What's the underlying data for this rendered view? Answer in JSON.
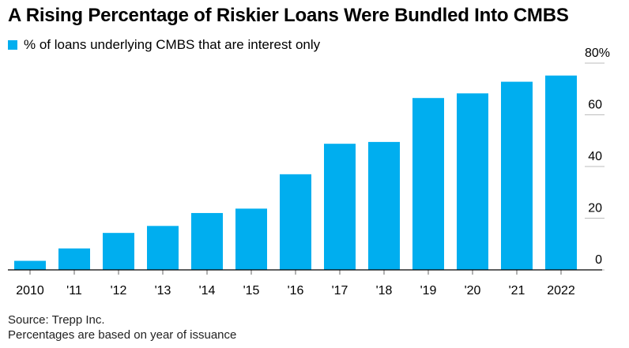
{
  "title": "A Rising Percentage of Riskier Loans Were Bundled Into CMBS",
  "legend": {
    "label": "% of loans underlying CMBS that are interest only"
  },
  "footer": {
    "source": "Source: Trepp Inc.",
    "note": "Percentages are based on year of issuance"
  },
  "colors": {
    "bar": "#00aeef",
    "axis": "#000000",
    "tick": "#555555"
  },
  "chart_data": {
    "type": "bar",
    "categories": [
      "2010",
      "'11",
      "'12",
      "'13",
      "'14",
      "'15",
      "'16",
      "'17",
      "'18",
      "'19",
      "'20",
      "'21",
      "2022"
    ],
    "series": [
      {
        "name": "% of loans underlying CMBS that are interest only",
        "values": [
          3.5,
          8.3,
          14.3,
          17.0,
          22.0,
          23.7,
          37.0,
          48.8,
          49.5,
          66.5,
          68.3,
          72.8,
          75.2
        ]
      }
    ],
    "ylim": [
      0,
      80
    ],
    "yticks": [
      0,
      20,
      40,
      60,
      80
    ],
    "ytick_labels": [
      "0",
      "20",
      "40",
      "60",
      "80%"
    ],
    "ylabel_position": "right",
    "grid": false
  }
}
